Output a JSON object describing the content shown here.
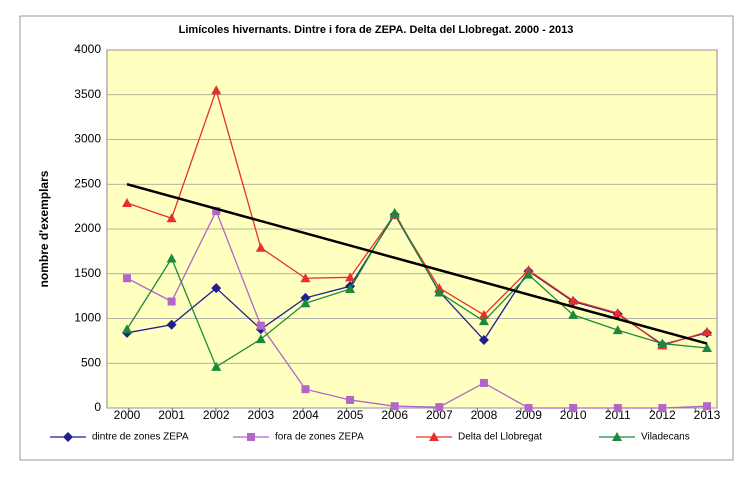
{
  "chart_data": {
    "type": "line",
    "title": "Limícoles hivernants. Dintre i fora de ZEPA. Delta del Llobregat. 2000 - 2013",
    "y_label": "nombre d'exemplars",
    "categories": [
      "2000",
      "2001",
      "2002",
      "2003",
      "2004",
      "2005",
      "2006",
      "2007",
      "2008",
      "2009",
      "2010",
      "2011",
      "2012",
      "2013"
    ],
    "series": [
      {
        "name": "dintre de zones ZEPA",
        "color": "#1f1f8f",
        "marker": "diamond",
        "values": [
          840,
          930,
          1340,
          880,
          1230,
          1360,
          2160,
          1300,
          760,
          1530,
          1190,
          1050,
          710,
          840
        ]
      },
      {
        "name": "fora de zones ZEPA",
        "color": "#b266c8",
        "marker": "square",
        "values": [
          1450,
          1190,
          2200,
          920,
          210,
          90,
          20,
          10,
          280,
          0,
          0,
          0,
          0,
          20
        ]
      },
      {
        "name": "Delta del Llobregat",
        "color": "#e8302a",
        "marker": "triangle",
        "values": [
          2290,
          2120,
          3550,
          1790,
          1450,
          1460,
          2160,
          1340,
          1040,
          1540,
          1200,
          1060,
          700,
          850
        ]
      },
      {
        "name": "Viladecans",
        "color": "#1a8a3a",
        "marker": "triangle",
        "values": [
          880,
          1670,
          460,
          770,
          1170,
          1330,
          2180,
          1290,
          970,
          1490,
          1040,
          870,
          720,
          670
        ]
      }
    ],
    "trendline": {
      "color": "#000000",
      "values": [
        2500,
        720
      ]
    },
    "ylim": [
      0,
      4000
    ],
    "yticks": [
      0,
      500,
      1000,
      1500,
      2000,
      2500,
      3000,
      3500,
      4000
    ],
    "grid": true,
    "legend": "bottom"
  }
}
